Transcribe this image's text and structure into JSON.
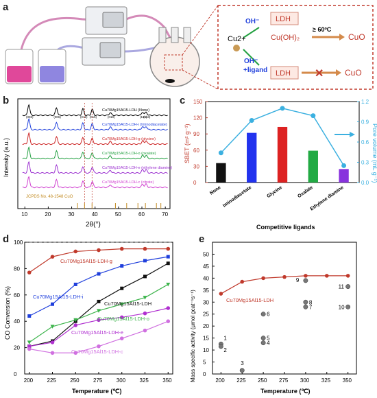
{
  "panel_a": {
    "letter": "a",
    "reaction_box": {
      "cu": "Cu2+",
      "oh_top": "OH⁻",
      "ldh_top": "LDH",
      "cuoh2": "Cu(OH)₂",
      "temp": "≥ 60ºC",
      "cuo_top": "CuO",
      "oh_bottom": "OH⁻",
      "ligand": "+ligand",
      "ldh_bottom": "LDH",
      "cuo_bottom": "CuO"
    },
    "colors": {
      "red_beaker": "#e0489a",
      "blue_beaker": "#8f86e0",
      "box_border": "#c0392b"
    }
  },
  "panel_b": {
    "letter": "b",
    "ylabel": "Intensity (a.u.)",
    "xlabel": "2θ(°)",
    "xticks": [
      "10",
      "20",
      "30",
      "40",
      "50",
      "60",
      "70"
    ],
    "curves": [
      {
        "label": "Cu70Mg15Al15-LDH (None)",
        "color": "#000000"
      },
      {
        "label": "Cu70Mg15Al15-LDH-i (Iminodiacetate)",
        "color": "#1f3fdc"
      },
      {
        "label": "Cu70Mg15Al15-LDH-g (glycine)",
        "color": "#cc2222"
      },
      {
        "label": "Cu70Mg15Al15-LDH-o (oxalate)",
        "color": "#22a040"
      },
      {
        "label": "Cu70Mg15Al15-LDH-e (ethylene diamine)",
        "color": "#9b30d0"
      },
      {
        "label": "Cu70Mg15Al15-LDH-c (citrate)",
        "color": "#d040d0"
      }
    ],
    "ref_label": "JCPDS No. 48-1548 CuO",
    "peak_labels": [
      "(003)",
      "(006)",
      "(012)",
      "(015)",
      "(018)",
      "(110)",
      "(113)"
    ]
  },
  "panel_c": {
    "letter": "c",
    "xlabel": "Competitive ligands",
    "ylabel_left": "SBET (m² g⁻¹)",
    "ylabel_right": "Pore volume (mL g⁻¹)",
    "chart_data": {
      "type": "bar",
      "categories": [
        "None",
        "Iminodiacetate",
        "Glycine",
        "Oxalate",
        "Ethylene diamine"
      ],
      "series": [
        {
          "axis": "left",
          "values": [
            36,
            92,
            103,
            59,
            25
          ],
          "colors": [
            "#111111",
            "#2233ee",
            "#dd2222",
            "#22aa44",
            "#8833dd"
          ]
        },
        {
          "axis": "right",
          "values": [
            0.44,
            0.92,
            1.1,
            0.99,
            0.25
          ],
          "color": "#3bb0e0"
        }
      ],
      "ylim_left": [
        0,
        150
      ],
      "yticks_left": [
        "0",
        "30",
        "60",
        "90",
        "120",
        "150"
      ],
      "ylim_right": [
        0,
        1.2
      ],
      "yticks_right": [
        "0.0",
        "0.3",
        "0.6",
        "0.9",
        "1.2"
      ]
    }
  },
  "panel_d": {
    "letter": "d",
    "xlabel": "Temperature (℃)",
    "ylabel": "CO Conversion (%)",
    "chart_data": {
      "type": "line",
      "x": [
        200,
        225,
        250,
        275,
        300,
        325,
        350
      ],
      "xticks": [
        "200",
        "225",
        "250",
        "275",
        "300",
        "325",
        "350"
      ],
      "ylim": [
        0,
        100
      ],
      "yticks": [
        "0",
        "20",
        "40",
        "60",
        "80",
        "100"
      ],
      "series": [
        {
          "name": "Cu70Mg15Al15-LDH-g",
          "color": "#c0392b",
          "marker": "circle",
          "values": [
            77,
            89,
            93,
            94,
            95,
            95,
            95
          ]
        },
        {
          "name": "Cu70Mg15Al15-LDH-i",
          "color": "#1f3fdc",
          "marker": "square",
          "values": [
            44,
            53,
            68,
            76,
            82,
            86,
            89
          ]
        },
        {
          "name": "Cu70Mg15Al15-LDH",
          "color": "#111111",
          "marker": "square",
          "values": [
            21,
            25,
            40,
            55,
            65,
            74,
            84
          ]
        },
        {
          "name": "Cu70Mg15Al15-LDH-o",
          "color": "#3cb44b",
          "marker": "triangle-down",
          "values": [
            24,
            36,
            41,
            48,
            53,
            58,
            68
          ]
        },
        {
          "name": "Cu70Mg15Al15-LDH-e",
          "color": "#b030d0",
          "marker": "circle",
          "values": [
            21,
            24,
            37,
            41,
            43,
            46,
            50
          ]
        },
        {
          "name": "Cu70Mg15Al15-LDH-c",
          "color": "#d070e0",
          "marker": "circle",
          "values": [
            19,
            16,
            16,
            21,
            27,
            33,
            40
          ]
        }
      ],
      "labels": {
        "g": "Cu70Mg15Al15-LDH-g",
        "i": "Cu70Mg15Al15-LDH-i",
        "none": "Cu70Mg15Al15-LDH",
        "o": "Cu70Mg15Al15-LDH-o",
        "e": "Cu70Mg15Al15-LDH-e",
        "c": "Cu70Mg15Al15-LDH-c"
      }
    }
  },
  "panel_e": {
    "letter": "e",
    "xlabel": "Temperature (℃)",
    "ylabel": "Mass specific activity (μmol gcat⁻¹s⁻¹)",
    "line_label": "Cu70Mg15Al15-LDH",
    "chart_data": {
      "type": "scatter",
      "xlim": [
        200,
        350
      ],
      "xticks": [
        "200",
        "225",
        "250",
        "275",
        "300",
        "325",
        "350"
      ],
      "ylim": [
        0,
        55
      ],
      "yticks": [
        "0",
        "5",
        "10",
        "15",
        "20",
        "25",
        "30",
        "35",
        "40",
        "45",
        "50"
      ],
      "line": {
        "color": "#c0392b",
        "x": [
          200,
          225,
          250,
          275,
          300,
          325,
          350
        ],
        "y": [
          33.5,
          38.5,
          40,
          40.5,
          41,
          41,
          41
        ]
      },
      "points": [
        {
          "label": "1",
          "x": 200,
          "y": 12.5
        },
        {
          "label": "2",
          "x": 200,
          "y": 11.5
        },
        {
          "label": "3",
          "x": 225,
          "y": 1.5
        },
        {
          "label": "4",
          "x": 250,
          "y": 13
        },
        {
          "label": "5",
          "x": 250,
          "y": 15
        },
        {
          "label": "6",
          "x": 250,
          "y": 25
        },
        {
          "label": "7",
          "x": 300,
          "y": 28
        },
        {
          "label": "8",
          "x": 300,
          "y": 30
        },
        {
          "label": "9",
          "x": 300,
          "y": 39
        },
        {
          "label": "10",
          "x": 350,
          "y": 28
        },
        {
          "label": "11",
          "x": 350,
          "y": 36.5
        }
      ]
    }
  }
}
